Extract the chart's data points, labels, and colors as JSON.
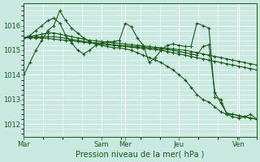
{
  "background_color": "#c8e8e0",
  "grid_color": "#ffffff",
  "line_color": "#1a5c1a",
  "xlabel": "Pression niveau de la mer( hPa )",
  "ylim": [
    1011.5,
    1016.9
  ],
  "yticks": [
    1012,
    1013,
    1014,
    1015,
    1016
  ],
  "xtick_labels": [
    "Mar",
    "Sam",
    "Mer",
    "Jeu",
    "Ven"
  ],
  "xtick_positions": [
    0,
    13,
    17,
    26,
    36
  ],
  "total_points": 40,
  "series": [
    [
      1014.0,
      1014.5,
      1015.0,
      1015.4,
      1015.8,
      1016.0,
      1016.6,
      1016.2,
      1015.9,
      1015.7,
      1015.5,
      1015.35,
      1015.25,
      1015.2,
      1015.15,
      1015.1,
      1015.1,
      1015.05,
      1015.0,
      1014.9,
      1014.8,
      1014.7,
      1014.6,
      1014.5,
      1014.35,
      1014.2,
      1014.0,
      1013.8,
      1013.5,
      1013.2,
      1013.0,
      1012.9,
      1012.7,
      1012.5,
      1012.4,
      1012.3,
      1012.25,
      1012.3,
      1012.4,
      1012.2
    ],
    [
      1015.5,
      1015.55,
      1015.6,
      1015.65,
      1015.7,
      1015.7,
      1015.65,
      1015.6,
      1015.55,
      1015.5,
      1015.45,
      1015.4,
      1015.38,
      1015.35,
      1015.32,
      1015.3,
      1015.28,
      1015.25,
      1015.22,
      1015.2,
      1015.18,
      1015.15,
      1015.12,
      1015.1,
      1015.08,
      1015.05,
      1015.02,
      1015.0,
      1014.95,
      1014.9,
      1014.85,
      1014.8,
      1014.75,
      1014.7,
      1014.65,
      1014.6,
      1014.55,
      1014.5,
      1014.45,
      1014.4
    ],
    [
      1015.5,
      1015.5,
      1015.5,
      1015.5,
      1015.48,
      1015.45,
      1015.42,
      1015.4,
      1015.38,
      1015.35,
      1015.32,
      1015.3,
      1015.28,
      1015.25,
      1015.22,
      1015.2,
      1015.18,
      1015.15,
      1015.12,
      1015.1,
      1015.08,
      1015.05,
      1015.02,
      1015.0,
      1014.95,
      1014.9,
      1014.85,
      1014.8,
      1014.75,
      1014.7,
      1014.65,
      1014.6,
      1014.55,
      1014.5,
      1014.45,
      1014.4,
      1014.35,
      1014.3,
      1014.25,
      1014.2
    ],
    [
      1015.5,
      1015.6,
      1015.8,
      1016.0,
      1016.2,
      1016.3,
      1016.1,
      1015.6,
      1015.3,
      1015.0,
      1014.85,
      1015.0,
      1015.2,
      1015.3,
      1015.35,
      1015.35,
      1015.4,
      1016.1,
      1015.95,
      1015.5,
      1015.2,
      1014.5,
      1014.7,
      1015.0,
      1015.2,
      1015.25,
      1015.2,
      1015.15,
      1015.15,
      1016.1,
      1016.0,
      1015.9,
      1013.1,
      1013.0,
      1012.4,
      1012.4,
      1012.35,
      1012.3,
      1012.25,
      1012.2
    ],
    [
      1015.5,
      1015.52,
      1015.53,
      1015.55,
      1015.55,
      1015.55,
      1015.52,
      1015.48,
      1015.44,
      1015.4,
      1015.36,
      1015.32,
      1015.3,
      1015.28,
      1015.25,
      1015.22,
      1015.2,
      1015.18,
      1015.16,
      1015.14,
      1015.12,
      1015.1,
      1015.08,
      1015.05,
      1015.02,
      1015.0,
      1014.95,
      1014.9,
      1014.85,
      1014.8,
      1015.15,
      1015.22,
      1013.3,
      1012.85,
      1012.45,
      1012.4,
      1012.35,
      1012.3,
      1012.25,
      1012.2
    ]
  ]
}
